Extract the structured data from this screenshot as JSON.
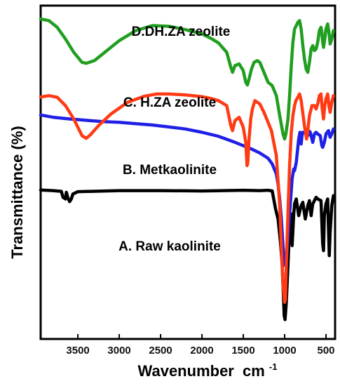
{
  "chart_data": {
    "type": "line",
    "title": "",
    "xlabel": "Wavenumber",
    "xlabel_unit_base": "cm",
    "xlabel_unit_exp": "-1",
    "ylabel": "Transmittance (%)",
    "xlim": [
      3950,
      390
    ],
    "x_reversed": true,
    "ylim": [
      0,
      100
    ],
    "y_ticks_shown": false,
    "grid": false,
    "x_ticks": [
      3500,
      3000,
      2500,
      2000,
      1500,
      1000,
      500
    ],
    "series": [
      {
        "name": "A. Raw kaolinite",
        "color": "#000000",
        "points": [
          [
            3950,
            44.7
          ],
          [
            3800,
            44.5
          ],
          [
            3700,
            44.3
          ],
          [
            3680,
            42.5
          ],
          [
            3650,
            42.0
          ],
          [
            3640,
            44.0
          ],
          [
            3620,
            42.3
          ],
          [
            3600,
            41.2
          ],
          [
            3580,
            42.0
          ],
          [
            3560,
            43.5
          ],
          [
            3500,
            44.2
          ],
          [
            3000,
            44.5
          ],
          [
            2500,
            44.5
          ],
          [
            2000,
            44.4
          ],
          [
            1500,
            44.6
          ],
          [
            1300,
            44.5
          ],
          [
            1200,
            44.6
          ],
          [
            1150,
            44.4
          ],
          [
            1110,
            39.0
          ],
          [
            1080,
            36.0
          ],
          [
            1050,
            29.0
          ],
          [
            1030,
            22.5
          ],
          [
            1005,
            7.0
          ],
          [
            995,
            5.8
          ],
          [
            980,
            11.0
          ],
          [
            960,
            22.0
          ],
          [
            940,
            34.5
          ],
          [
            920,
            37.5
          ],
          [
            910,
            28.0
          ],
          [
            890,
            37.5
          ],
          [
            880,
            40.5
          ],
          [
            860,
            42.0
          ],
          [
            830,
            37.0
          ],
          [
            800,
            40.0
          ],
          [
            780,
            41.0
          ],
          [
            750,
            36.0
          ],
          [
            720,
            40.0
          ],
          [
            700,
            41.5
          ],
          [
            680,
            37.0
          ],
          [
            660,
            40.5
          ],
          [
            620,
            42.5
          ],
          [
            600,
            42.0
          ],
          [
            560,
            41.5
          ],
          [
            540,
            28.5
          ],
          [
            530,
            26.5
          ],
          [
            520,
            37.0
          ],
          [
            500,
            40.5
          ],
          [
            480,
            42.0
          ],
          [
            470,
            33.0
          ],
          [
            460,
            25.0
          ],
          [
            450,
            32.0
          ],
          [
            430,
            40.0
          ],
          [
            410,
            43.0
          ]
        ]
      },
      {
        "name": "B. Metkaolinite",
        "color": "#1f1fe6",
        "points": [
          [
            3950,
            67.2
          ],
          [
            3800,
            66.5
          ],
          [
            3600,
            66.0
          ],
          [
            3400,
            65.6
          ],
          [
            3200,
            65.2
          ],
          [
            3000,
            65.0
          ],
          [
            2800,
            64.6
          ],
          [
            2600,
            64.2
          ],
          [
            2400,
            63.6
          ],
          [
            2200,
            63.0
          ],
          [
            2000,
            62.0
          ],
          [
            1800,
            60.8
          ],
          [
            1600,
            59.0
          ],
          [
            1400,
            57.0
          ],
          [
            1300,
            55.8
          ],
          [
            1200,
            54.2
          ],
          [
            1150,
            52.5
          ],
          [
            1100,
            49.5
          ],
          [
            1080,
            46.5
          ],
          [
            1060,
            42.0
          ],
          [
            1040,
            36.0
          ],
          [
            1020,
            28.0
          ],
          [
            1000,
            22.5
          ],
          [
            990,
            22.0
          ],
          [
            970,
            27.0
          ],
          [
            950,
            34.0
          ],
          [
            930,
            41.0
          ],
          [
            910,
            48.0
          ],
          [
            890,
            51.0
          ],
          [
            880,
            50.5
          ],
          [
            860,
            53.0
          ],
          [
            830,
            60.0
          ],
          [
            815,
            62.0
          ],
          [
            800,
            58.5
          ],
          [
            790,
            61.0
          ],
          [
            780,
            62.0
          ],
          [
            760,
            62.0
          ],
          [
            720,
            61.0
          ],
          [
            700,
            62.3
          ],
          [
            690,
            62.0
          ],
          [
            660,
            59.0
          ],
          [
            640,
            61.5
          ],
          [
            620,
            62.0
          ],
          [
            600,
            61.5
          ],
          [
            570,
            61.0
          ],
          [
            550,
            58.0
          ],
          [
            540,
            57.5
          ],
          [
            520,
            59.0
          ],
          [
            500,
            61.5
          ],
          [
            470,
            62.5
          ],
          [
            450,
            60.5
          ],
          [
            430,
            61.5
          ],
          [
            410,
            63.0
          ]
        ]
      },
      {
        "name": "C. H.ZA zeolite",
        "color": "#ff3a14",
        "points": [
          [
            3950,
            72.6
          ],
          [
            3850,
            73.0
          ],
          [
            3750,
            72.5
          ],
          [
            3650,
            70.0
          ],
          [
            3550,
            66.0
          ],
          [
            3450,
            61.0
          ],
          [
            3400,
            60.2
          ],
          [
            3350,
            61.2
          ],
          [
            3250,
            64.0
          ],
          [
            3100,
            67.5
          ],
          [
            2900,
            71.0
          ],
          [
            2700,
            72.8
          ],
          [
            2550,
            73.5
          ],
          [
            2400,
            73.5
          ],
          [
            2200,
            73.2
          ],
          [
            2000,
            72.7
          ],
          [
            1900,
            72.2
          ],
          [
            1800,
            71.5
          ],
          [
            1700,
            70.0
          ],
          [
            1650,
            64.0
          ],
          [
            1630,
            62.5
          ],
          [
            1600,
            65.5
          ],
          [
            1550,
            66.5
          ],
          [
            1500,
            63.5
          ],
          [
            1470,
            59.0
          ],
          [
            1455,
            52.0
          ],
          [
            1445,
            53.0
          ],
          [
            1430,
            60.0
          ],
          [
            1410,
            66.0
          ],
          [
            1390,
            69.0
          ],
          [
            1360,
            71.5
          ],
          [
            1300,
            70.5
          ],
          [
            1250,
            68.0
          ],
          [
            1200,
            65.0
          ],
          [
            1160,
            62.5
          ],
          [
            1100,
            55.0
          ],
          [
            1060,
            40.0
          ],
          [
            1040,
            28.0
          ],
          [
            1020,
            16.0
          ],
          [
            1000,
            11.0
          ],
          [
            990,
            12.0
          ],
          [
            980,
            22.0
          ],
          [
            960,
            38.0
          ],
          [
            940,
            52.0
          ],
          [
            920,
            62.0
          ],
          [
            900,
            67.0
          ],
          [
            880,
            70.0
          ],
          [
            865,
            71.5
          ],
          [
            840,
            72.5
          ],
          [
            820,
            73.5
          ],
          [
            800,
            71.5
          ],
          [
            760,
            64.0
          ],
          [
            735,
            60.0
          ],
          [
            720,
            62.5
          ],
          [
            700,
            67.0
          ],
          [
            670,
            70.0
          ],
          [
            640,
            70.0
          ],
          [
            620,
            69.0
          ],
          [
            600,
            70.5
          ],
          [
            580,
            73.0
          ],
          [
            560,
            73.5
          ],
          [
            545,
            69.0
          ],
          [
            530,
            66.0
          ],
          [
            515,
            70.0
          ],
          [
            500,
            72.0
          ],
          [
            480,
            73.5
          ],
          [
            465,
            70.0
          ],
          [
            450,
            68.0
          ],
          [
            430,
            71.0
          ],
          [
            410,
            73.0
          ]
        ]
      },
      {
        "name": "D.DH.ZA zeolite",
        "color": "#1f9e1f",
        "points": [
          [
            3950,
            96.0
          ],
          [
            3850,
            95.5
          ],
          [
            3750,
            93.5
          ],
          [
            3650,
            90.0
          ],
          [
            3550,
            86.0
          ],
          [
            3450,
            83.0
          ],
          [
            3400,
            82.7
          ],
          [
            3300,
            83.5
          ],
          [
            3200,
            85.5
          ],
          [
            3000,
            89.5
          ],
          [
            2800,
            92.5
          ],
          [
            2600,
            94.0
          ],
          [
            2400,
            93.8
          ],
          [
            2200,
            92.8
          ],
          [
            2000,
            91.5
          ],
          [
            1900,
            90.3
          ],
          [
            1800,
            88.8
          ],
          [
            1700,
            86.0
          ],
          [
            1650,
            81.5
          ],
          [
            1630,
            80.0
          ],
          [
            1600,
            82.0
          ],
          [
            1550,
            82.5
          ],
          [
            1500,
            80.5
          ],
          [
            1470,
            77.0
          ],
          [
            1450,
            76.2
          ],
          [
            1430,
            78.0
          ],
          [
            1400,
            81.0
          ],
          [
            1370,
            83.0
          ],
          [
            1330,
            83.5
          ],
          [
            1300,
            83.0
          ],
          [
            1250,
            80.0
          ],
          [
            1200,
            77.0
          ],
          [
            1150,
            76.0
          ],
          [
            1100,
            73.0
          ],
          [
            1060,
            67.0
          ],
          [
            1020,
            61.5
          ],
          [
            1000,
            60.0
          ],
          [
            985,
            61.5
          ],
          [
            960,
            66.0
          ],
          [
            940,
            73.0
          ],
          [
            920,
            82.0
          ],
          [
            900,
            89.0
          ],
          [
            880,
            93.0
          ],
          [
            860,
            94.0
          ],
          [
            840,
            95.0
          ],
          [
            820,
            95.5
          ],
          [
            800,
            93.0
          ],
          [
            780,
            88.0
          ],
          [
            760,
            84.0
          ],
          [
            740,
            81.0
          ],
          [
            720,
            80.0
          ],
          [
            700,
            83.0
          ],
          [
            680,
            87.0
          ],
          [
            660,
            88.0
          ],
          [
            640,
            86.5
          ],
          [
            620,
            87.0
          ],
          [
            600,
            89.0
          ],
          [
            580,
            92.5
          ],
          [
            560,
            93.5
          ],
          [
            550,
            92.0
          ],
          [
            540,
            89.0
          ],
          [
            530,
            87.5
          ],
          [
            515,
            90.0
          ],
          [
            500,
            93.0
          ],
          [
            480,
            94.5
          ],
          [
            465,
            92.0
          ],
          [
            450,
            88.5
          ],
          [
            430,
            90.0
          ],
          [
            410,
            92.5
          ]
        ]
      }
    ]
  }
}
